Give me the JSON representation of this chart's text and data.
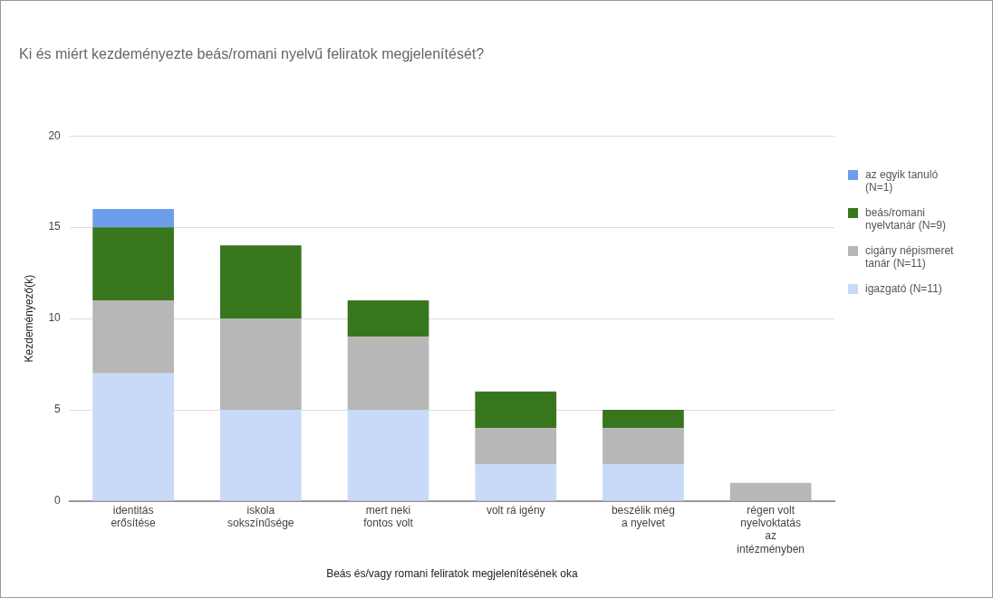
{
  "chart_data": {
    "type": "bar",
    "title": "Ki és miért kezdeményezte beás/romani nyelvű feliratok megjelenítését?",
    "xlabel": "Beás és/vagy romani feliratok megjelenítésének oka",
    "ylabel": "Kezdeményező(k)",
    "categories": [
      "identitás erősítése",
      "iskola sokszínűsége",
      "mert neki fontos volt",
      "volt rá igény",
      "beszélik még a nyelvet",
      "régen volt nyelvoktatás az intézményben"
    ],
    "stacked": true,
    "series": [
      {
        "name": "igazgató (N=11)",
        "color": "#c9daf8",
        "values": [
          7,
          5,
          5,
          2,
          2,
          0
        ]
      },
      {
        "name": "cigány népismeret tanár (N=11)",
        "color": "#b7b7b7",
        "values": [
          4,
          5,
          4,
          2,
          2,
          1
        ]
      },
      {
        "name": "beás/romani nyelvtanár (N=9)",
        "color": "#38761d",
        "values": [
          4,
          4,
          2,
          2,
          1,
          0
        ]
      },
      {
        "name": "az egyik tanuló (N=1)",
        "color": "#6d9eeb",
        "values": [
          1,
          0,
          0,
          0,
          0,
          0
        ]
      }
    ],
    "ylim": [
      0,
      20
    ],
    "yticks": [
      0,
      5,
      10,
      15,
      20
    ],
    "grid": "y",
    "legend": "right"
  }
}
